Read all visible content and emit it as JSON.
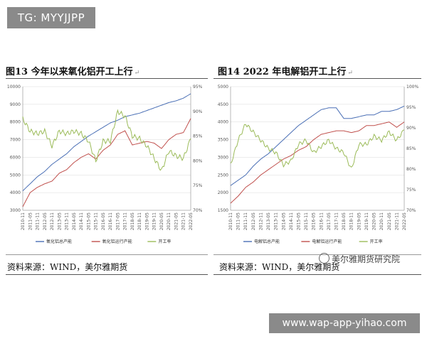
{
  "overlay": {
    "tag": "TG: MYYJJPP",
    "url": "www.wap-app-yihao.com",
    "watermark": "美尔雅期货研究院"
  },
  "panels": [
    {
      "title": "图13  今年以来氧化铝开工上行",
      "mark": "↵",
      "source": "资料来源：WIND，美尔雅期货"
    },
    {
      "title": "图14   2022 年电解铝开工上行",
      "mark": "↵",
      "source": "资料来源：WIND，美尔雅期货"
    }
  ],
  "colors": {
    "capacity": "#4a6fb5",
    "output": "#c0504d",
    "rate": "#9bbb59",
    "grid": "#d9d9d9"
  },
  "chart_data": [
    {
      "type": "line",
      "left_axis": {
        "ylim": [
          3000,
          10000
        ],
        "ticks": [
          "3000",
          "4000",
          "5000",
          "6000",
          "7000",
          "8000",
          "9000",
          "10000"
        ]
      },
      "right_axis": {
        "ylim": [
          70,
          95
        ],
        "ticks": [
          "70%",
          "75%",
          "80%",
          "85%",
          "90%",
          "95%"
        ]
      },
      "x": [
        "2010-11",
        "2011-05",
        "2011-11",
        "2012-05",
        "2012-11",
        "2013-05",
        "2013-11",
        "2014-05",
        "2014-11",
        "2015-05",
        "2015-11",
        "2016-05",
        "2016-11",
        "2017-05",
        "2017-11",
        "2018-05",
        "2018-11",
        "2019-05",
        "2019-11",
        "2020-05",
        "2020-11",
        "2021-05",
        "2021-11",
        "2022-05"
      ],
      "legend_position": "bottom",
      "series": [
        {
          "name": "氧化铝总产能",
          "axis": "left",
          "color_key": "capacity",
          "values": [
            4100,
            4500,
            4900,
            5200,
            5600,
            5900,
            6200,
            6600,
            6900,
            7200,
            7450,
            7700,
            7950,
            8100,
            8300,
            8400,
            8500,
            8650,
            8800,
            8950,
            9100,
            9200,
            9350,
            9600
          ]
        },
        {
          "name": "氧化铝运行产能",
          "axis": "left",
          "color_key": "output",
          "values": [
            3200,
            4000,
            4300,
            4500,
            4650,
            5100,
            5300,
            5700,
            6000,
            6200,
            5900,
            6400,
            6700,
            7300,
            7500,
            6700,
            6800,
            6900,
            6800,
            6500,
            7000,
            7300,
            7400,
            8200
          ]
        },
        {
          "name": "开工率",
          "axis": "right",
          "color_key": "rate",
          "values": [
            88.5,
            86.0,
            85.5,
            86.0,
            83.0,
            86.0,
            85.5,
            86.0,
            85.5,
            84.0,
            80.0,
            84.0,
            84.0,
            90.0,
            89.0,
            85.0,
            84.5,
            83.0,
            80.5,
            78.0,
            82.0,
            81.0,
            80.5,
            84.5
          ]
        }
      ]
    },
    {
      "type": "line",
      "left_axis": {
        "ylim": [
          1500,
          5000
        ],
        "ticks": [
          "1500",
          "2000",
          "2500",
          "3000",
          "3500",
          "4000",
          "4500",
          "5000"
        ]
      },
      "right_axis": {
        "ylim": [
          70,
          100
        ],
        "ticks": [
          "70%",
          "75%",
          "80%",
          "85%",
          "90%",
          "95%",
          "100%"
        ]
      },
      "x": [
        "2010-11",
        "2011-05",
        "2011-11",
        "2012-05",
        "2012-11",
        "2013-05",
        "2013-11",
        "2014-05",
        "2014-11",
        "2015-05",
        "2015-11",
        "2016-05",
        "2016-11",
        "2017-05",
        "2017-11",
        "2018-05",
        "2018-11",
        "2019-05",
        "2019-11",
        "2020-05",
        "2020-11",
        "2021-05",
        "2021-11",
        "2022-05"
      ],
      "legend_position": "bottom",
      "series": [
        {
          "name": "电解铝总产能",
          "axis": "left",
          "color_key": "capacity",
          "values": [
            2200,
            2350,
            2500,
            2750,
            2950,
            3100,
            3300,
            3500,
            3700,
            3900,
            4050,
            4200,
            4350,
            4400,
            4400,
            4100,
            4100,
            4150,
            4200,
            4200,
            4300,
            4300,
            4350,
            4450
          ]
        },
        {
          "name": "电解铝运行产能",
          "axis": "left",
          "color_key": "output",
          "values": [
            1700,
            1900,
            2150,
            2300,
            2500,
            2650,
            2800,
            2950,
            3050,
            3200,
            3300,
            3500,
            3650,
            3700,
            3750,
            3750,
            3700,
            3750,
            3900,
            3900,
            3950,
            4000,
            3850,
            4000
          ]
        },
        {
          "name": "开工率",
          "axis": "right",
          "color_key": "rate",
          "values": [
            81.0,
            87.0,
            91.0,
            89.0,
            87.0,
            85.0,
            84.0,
            81.0,
            82.0,
            86.0,
            87.0,
            84.0,
            85.5,
            87.0,
            85.0,
            84.0,
            80.0,
            86.0,
            86.0,
            88.0,
            87.0,
            89.0,
            87.0,
            89.5
          ]
        }
      ]
    }
  ]
}
